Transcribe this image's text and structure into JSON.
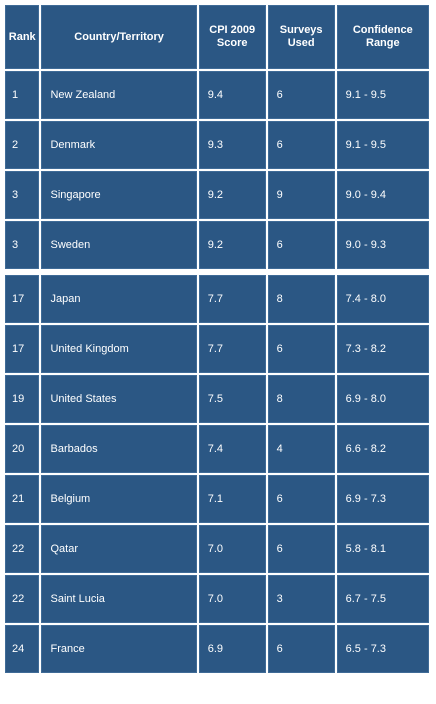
{
  "table": {
    "headers": {
      "rank": "Rank",
      "country": "Country/Territory",
      "score_line1": "CPI 2009",
      "score_line2": "Score",
      "surveys_line1": "Surveys",
      "surveys_line2": "Used",
      "range_line1": "Confidence",
      "range_line2": "Range"
    },
    "group1": [
      {
        "rank": "1",
        "country": "New Zealand",
        "score": "9.4",
        "surveys": "6",
        "range": "9.1 - 9.5"
      },
      {
        "rank": "2",
        "country": "Denmark",
        "score": "9.3",
        "surveys": "6",
        "range": "9.1 - 9.5"
      },
      {
        "rank": "3",
        "country": "Singapore",
        "score": "9.2",
        "surveys": "9",
        "range": "9.0 - 9.4"
      },
      {
        "rank": "3",
        "country": "Sweden",
        "score": "9.2",
        "surveys": "6",
        "range": "9.0 - 9.3"
      }
    ],
    "group2": [
      {
        "rank": "17",
        "country": "Japan",
        "score": "7.7",
        "surveys": "8",
        "range": "7.4 - 8.0"
      },
      {
        "rank": "17",
        "country": "United Kingdom",
        "score": "7.7",
        "surveys": "6",
        "range": "7.3 - 8.2"
      },
      {
        "rank": "19",
        "country": "United States",
        "score": "7.5",
        "surveys": "8",
        "range": "6.9 - 8.0"
      },
      {
        "rank": "20",
        "country": "Barbados",
        "score": "7.4",
        "surveys": "4",
        "range": "6.6 - 8.2"
      },
      {
        "rank": "21",
        "country": "Belgium",
        "score": "7.1",
        "surveys": "6",
        "range": "6.9 - 7.3"
      },
      {
        "rank": "22",
        "country": "Qatar",
        "score": "7.0",
        "surveys": "6",
        "range": "5.8 - 8.1"
      },
      {
        "rank": "22",
        "country": "Saint Lucia",
        "score": "7.0",
        "surveys": "3",
        "range": "6.7 - 7.5"
      },
      {
        "rank": "24",
        "country": "France",
        "score": "6.9",
        "surveys": "6",
        "range": "6.5 - 7.3"
      }
    ]
  },
  "colors": {
    "cell_background": "#2b5784",
    "cell_text": "#ffffff",
    "grid": "#ffffff"
  }
}
